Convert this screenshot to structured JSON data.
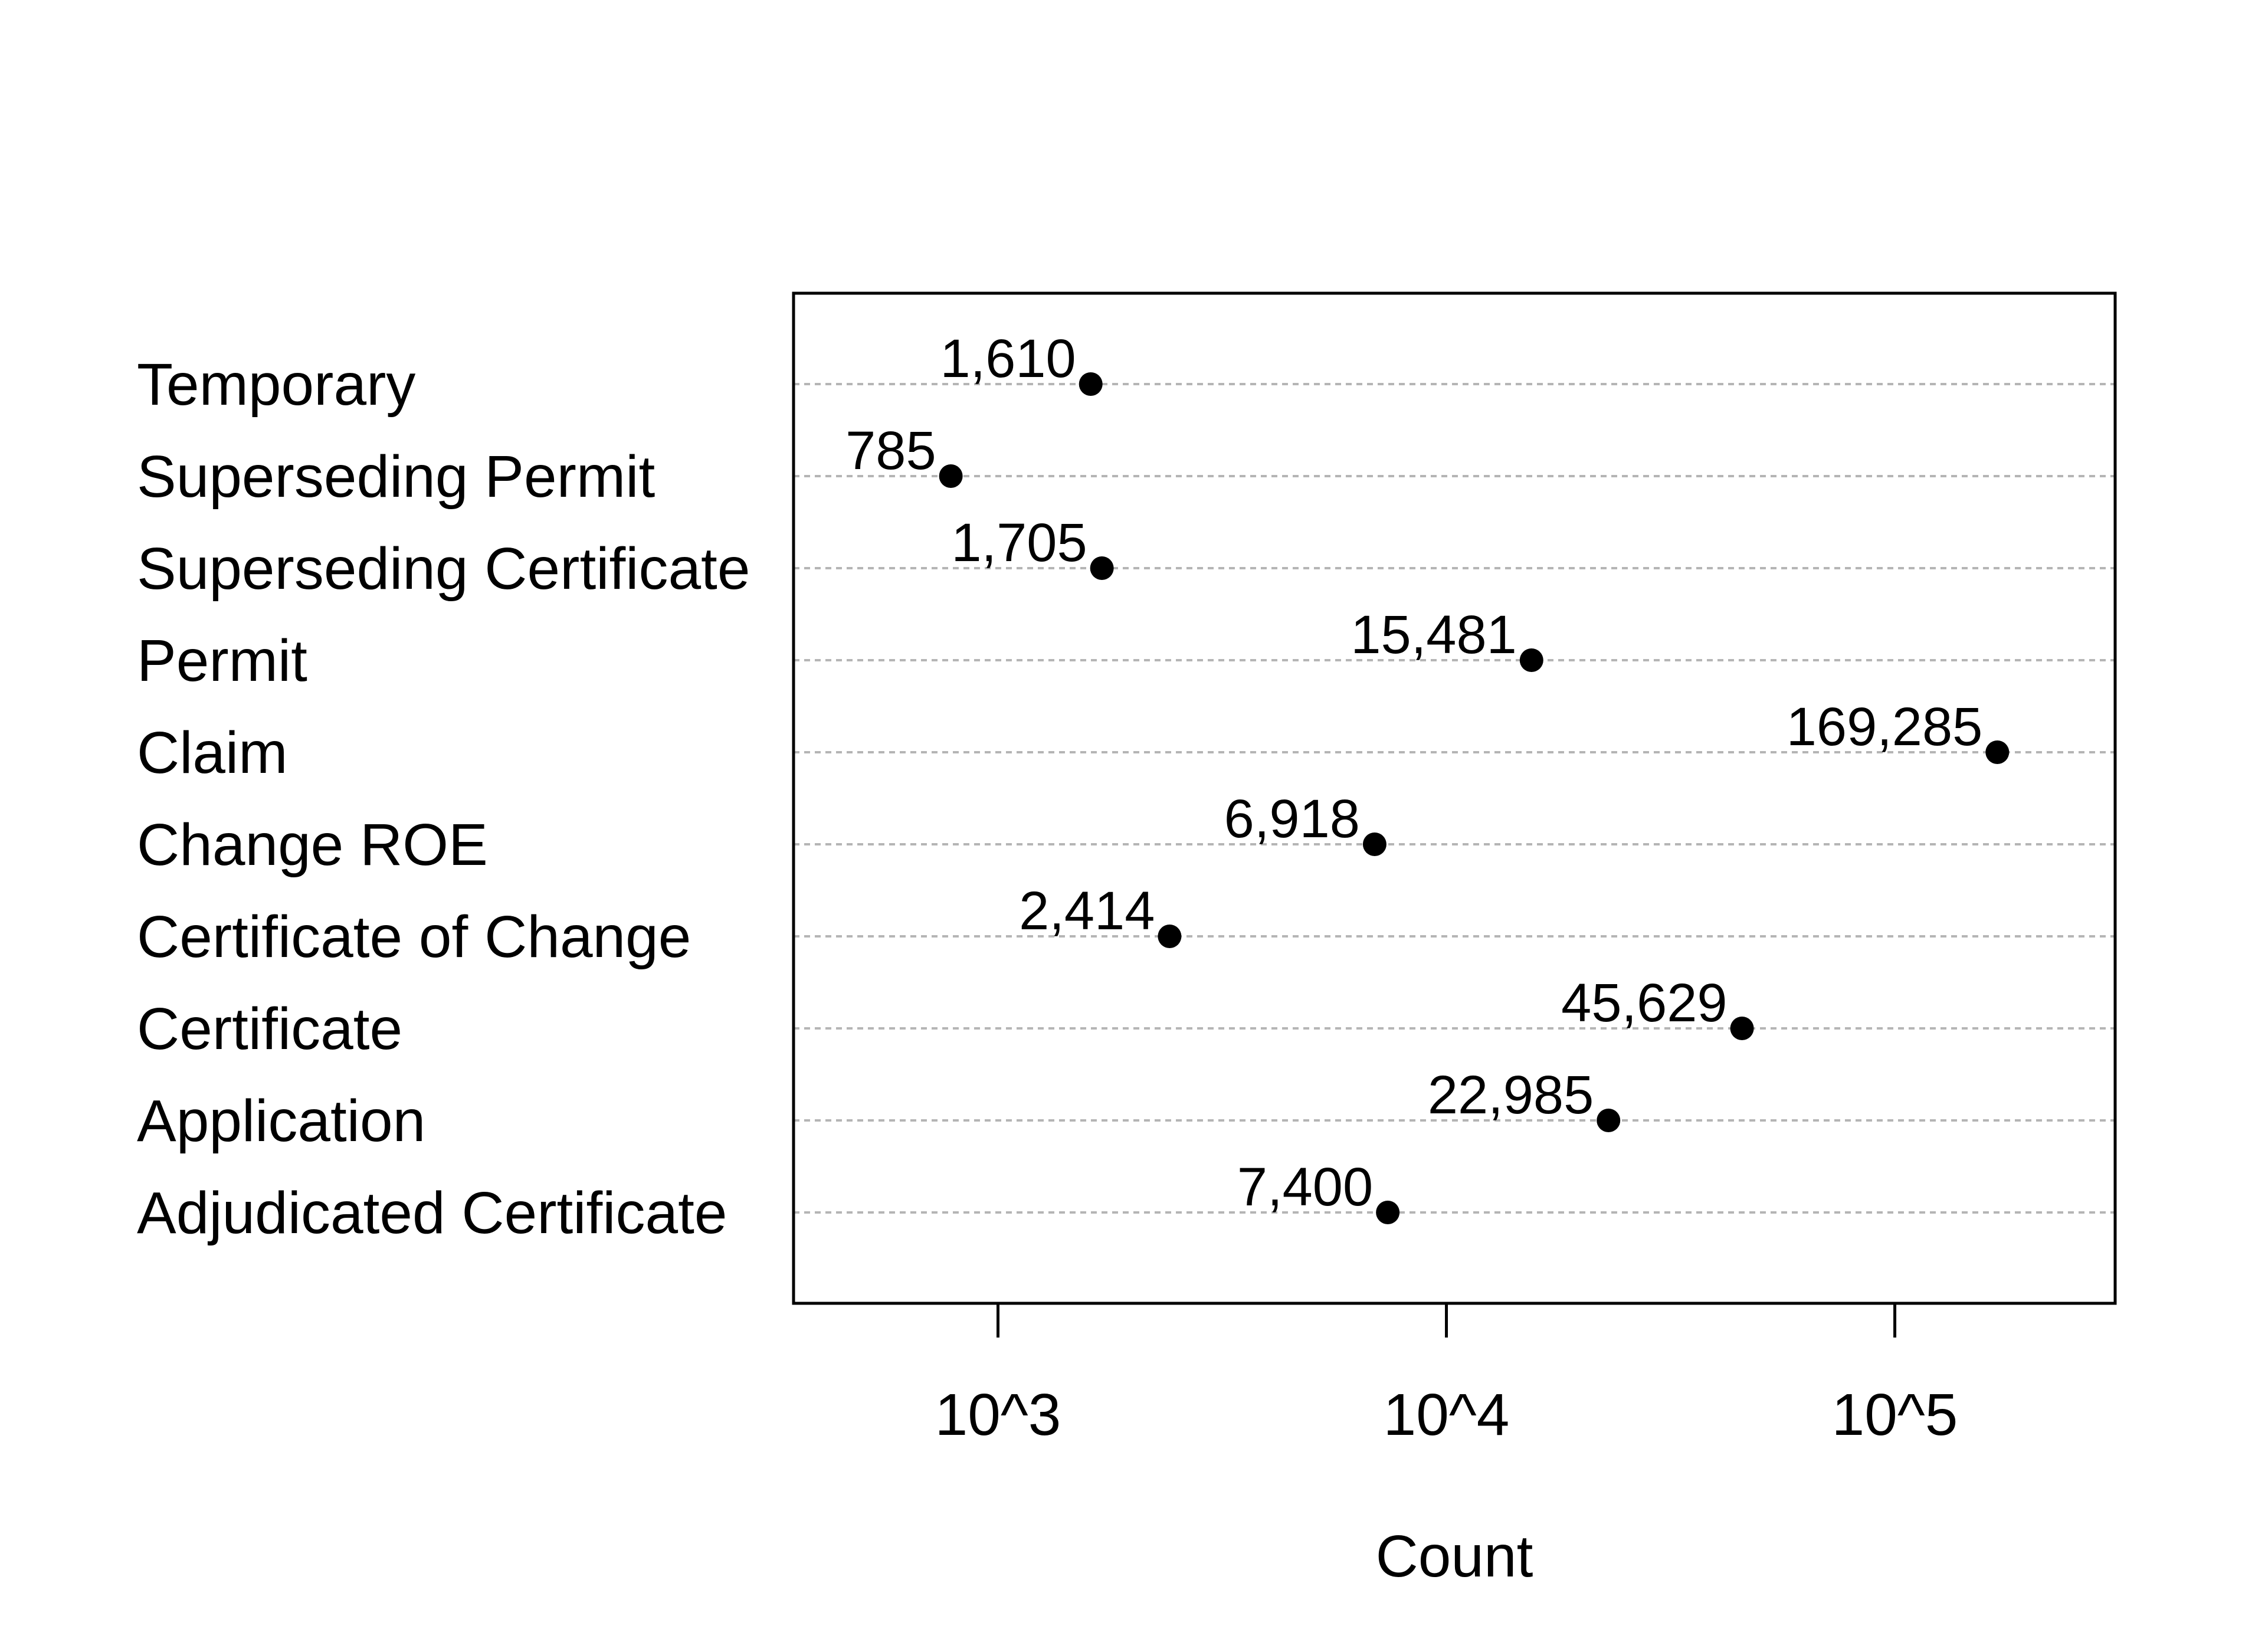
{
  "chart_data": {
    "type": "scatter",
    "subtype": "dot-plot",
    "xscale": "log10",
    "xlabel": "Count",
    "ylabel": "",
    "xlim": [
      350,
      310000
    ],
    "xticks": [
      1000,
      10000,
      100000
    ],
    "xtick_labels": [
      "10^3",
      "10^4",
      "10^5"
    ],
    "grid": "horizontal-dotted",
    "categories": [
      "Temporary",
      "Superseding Permit",
      "Superseding Certificate",
      "Permit",
      "Claim",
      "Change ROE",
      "Certificate of Change",
      "Certificate",
      "Application",
      "Adjudicated Certificate"
    ],
    "values": [
      1610,
      785,
      1705,
      15481,
      169285,
      6918,
      2414,
      45629,
      22985,
      7400
    ],
    "data_labels": [
      "1,610",
      "785",
      "1,705",
      "15,481",
      "169,285",
      "6,918",
      "2,414",
      "45,629",
      "22,985",
      "7,400"
    ],
    "colors": {
      "points": "#000000",
      "grid": "#b5b5b5",
      "frame": "#000000"
    }
  }
}
